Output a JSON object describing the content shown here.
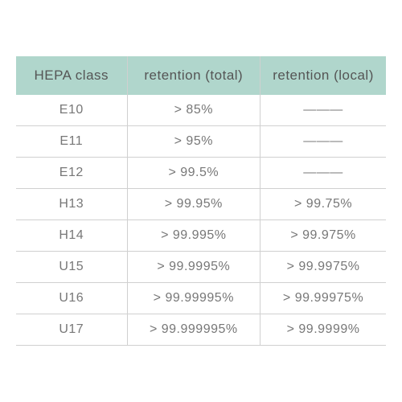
{
  "table": {
    "type": "table",
    "columns": [
      {
        "label": "HEPA class",
        "align": "center",
        "width_pct": 30
      },
      {
        "label": "retention (total)",
        "align": "center",
        "width_pct": 36
      },
      {
        "label": "retention (local)",
        "align": "center",
        "width_pct": 34
      }
    ],
    "rows": [
      {
        "cells": [
          "E10",
          "> 85%",
          "———"
        ]
      },
      {
        "cells": [
          "E11",
          "> 95%",
          "———"
        ]
      },
      {
        "cells": [
          "E12",
          "> 99.5%",
          "———"
        ]
      },
      {
        "cells": [
          "H13",
          "> 99.95%",
          "> 99.75%"
        ]
      },
      {
        "cells": [
          "H14",
          "> 99.995%",
          "> 99.975%"
        ]
      },
      {
        "cells": [
          "U15",
          "> 99.9995%",
          "> 99.9975%"
        ]
      },
      {
        "cells": [
          "U16",
          "> 99.99995%",
          "> 99.99975%"
        ]
      },
      {
        "cells": [
          "U17",
          "> 99.999995%",
          "> 99.9999%"
        ]
      }
    ],
    "header_bg": "#b0d6cc",
    "header_text_color": "#555555",
    "cell_text_color": "#777777",
    "border_color": "#d0d0d0",
    "background_color": "#ffffff",
    "font_family": "Helvetica Neue",
    "header_fontsize": 17,
    "cell_fontsize": 16,
    "font_weight": 300
  }
}
